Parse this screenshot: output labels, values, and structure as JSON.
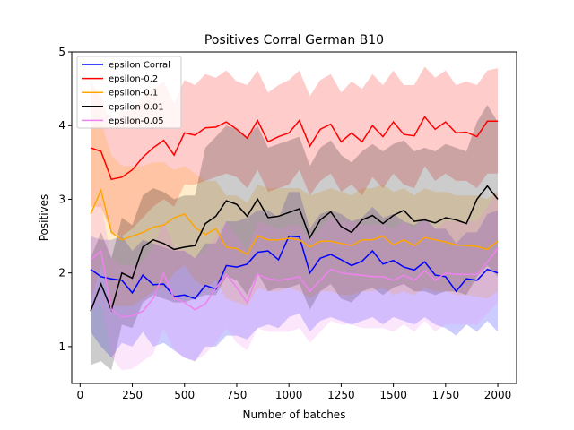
{
  "chart_data": {
    "type": "line",
    "title": "Positives Corral German B10",
    "xlabel": "Number of batches",
    "ylabel": "Positives",
    "xlim": [
      -40,
      2090
    ],
    "ylim": [
      0.5,
      5.0
    ],
    "xticks": [
      0,
      250,
      500,
      750,
      1000,
      1250,
      1500,
      1750,
      2000
    ],
    "yticks": [
      1,
      2,
      3,
      4,
      5
    ],
    "legend_position": "top-left",
    "x": [
      50,
      100,
      150,
      200,
      250,
      300,
      350,
      400,
      450,
      500,
      550,
      600,
      650,
      700,
      750,
      800,
      850,
      900,
      950,
      1000,
      1050,
      1100,
      1150,
      1200,
      1250,
      1300,
      1350,
      1400,
      1450,
      1500,
      1550,
      1600,
      1650,
      1700,
      1750,
      1800,
      1850,
      1900,
      1950,
      2000
    ],
    "series": [
      {
        "name": "epsilon Corral",
        "color": "#0000ff",
        "fill": "rgba(0,0,255,0.2)",
        "values": [
          2.05,
          1.95,
          1.92,
          1.9,
          1.73,
          1.97,
          1.84,
          1.85,
          1.68,
          1.7,
          1.65,
          1.83,
          1.78,
          2.1,
          2.08,
          2.12,
          2.28,
          2.3,
          2.18,
          2.5,
          2.49,
          2.0,
          2.2,
          2.25,
          2.18,
          2.1,
          2.16,
          2.3,
          2.12,
          2.17,
          2.08,
          2.04,
          2.15,
          1.97,
          1.95,
          1.75,
          1.92,
          1.9,
          2.05,
          2.0
        ],
        "upper": [
          2.5,
          2.45,
          2.45,
          2.5,
          2.3,
          2.45,
          2.4,
          2.35,
          2.3,
          2.3,
          2.2,
          2.4,
          2.4,
          2.7,
          2.7,
          2.75,
          2.85,
          2.85,
          2.75,
          3.1,
          3.1,
          2.6,
          2.8,
          2.85,
          2.8,
          2.7,
          2.75,
          2.9,
          2.75,
          2.8,
          2.7,
          2.65,
          2.75,
          2.6,
          2.6,
          2.4,
          2.55,
          2.55,
          2.8,
          2.85
        ],
        "lower": [
          1.2,
          1.0,
          0.85,
          1.05,
          1.0,
          1.2,
          1.0,
          1.05,
          0.95,
          0.85,
          0.8,
          1.0,
          1.0,
          1.15,
          1.15,
          1.1,
          1.25,
          1.3,
          1.25,
          1.4,
          1.45,
          1.2,
          1.35,
          1.4,
          1.35,
          1.3,
          1.35,
          1.4,
          1.3,
          1.4,
          1.35,
          1.3,
          1.4,
          1.3,
          1.25,
          1.15,
          1.3,
          1.2,
          1.35,
          1.2
        ]
      },
      {
        "name": "epsilon-0.2",
        "color": "#ff0000",
        "fill": "rgba(255,0,0,0.2)",
        "values": [
          3.7,
          3.65,
          3.27,
          3.3,
          3.4,
          3.57,
          3.7,
          3.8,
          3.6,
          3.9,
          3.87,
          3.97,
          3.98,
          4.05,
          3.95,
          3.83,
          4.07,
          3.78,
          3.85,
          3.9,
          4.07,
          3.72,
          3.95,
          4.02,
          3.78,
          3.9,
          3.78,
          4.0,
          3.85,
          4.05,
          3.88,
          3.86,
          4.12,
          3.95,
          4.05,
          3.9,
          3.91,
          3.85,
          4.06,
          4.06
        ],
        "upper": [
          4.6,
          4.4,
          4.0,
          4.2,
          4.2,
          4.4,
          4.5,
          4.6,
          4.3,
          4.62,
          4.55,
          4.7,
          4.65,
          4.75,
          4.6,
          4.55,
          4.75,
          4.45,
          4.55,
          4.62,
          4.75,
          4.4,
          4.62,
          4.7,
          4.45,
          4.6,
          4.5,
          4.7,
          4.55,
          4.75,
          4.55,
          4.55,
          4.8,
          4.65,
          4.75,
          4.55,
          4.6,
          4.55,
          4.75,
          4.78
        ],
        "lower": [
          2.9,
          2.9,
          2.55,
          2.5,
          2.6,
          2.75,
          2.9,
          3.0,
          2.9,
          3.2,
          3.2,
          3.25,
          3.3,
          3.35,
          3.3,
          3.15,
          3.4,
          3.1,
          3.15,
          3.2,
          3.4,
          3.05,
          3.25,
          3.35,
          3.1,
          3.2,
          3.05,
          3.3,
          3.15,
          3.35,
          3.2,
          3.15,
          3.45,
          3.25,
          3.35,
          3.25,
          3.25,
          3.15,
          3.35,
          3.35
        ]
      },
      {
        "name": "epsilon-0.1",
        "color": "#ffa500",
        "fill": "rgba(255,165,0,0.2)",
        "values": [
          2.8,
          3.12,
          2.55,
          2.45,
          2.5,
          2.55,
          2.62,
          2.65,
          2.75,
          2.8,
          2.62,
          2.52,
          2.6,
          2.35,
          2.33,
          2.25,
          2.5,
          2.45,
          2.45,
          2.47,
          2.45,
          2.35,
          2.43,
          2.43,
          2.4,
          2.37,
          2.45,
          2.45,
          2.5,
          2.38,
          2.45,
          2.37,
          2.48,
          2.45,
          2.42,
          2.38,
          2.37,
          2.36,
          2.32,
          2.43
        ],
        "upper": [
          4.0,
          4.05,
          3.6,
          3.45,
          3.45,
          3.45,
          3.5,
          3.5,
          3.4,
          3.45,
          3.35,
          3.25,
          3.25,
          3.05,
          3.05,
          2.95,
          3.2,
          3.15,
          3.15,
          3.15,
          3.15,
          3.05,
          3.1,
          3.15,
          3.1,
          3.05,
          3.15,
          3.15,
          3.2,
          3.1,
          3.15,
          3.05,
          3.15,
          3.1,
          3.1,
          3.05,
          3.05,
          3.05,
          3.0,
          3.1
        ],
        "lower": [
          1.6,
          2.1,
          1.55,
          1.55,
          1.55,
          1.65,
          1.75,
          1.8,
          2.0,
          2.1,
          1.9,
          1.8,
          1.9,
          1.65,
          1.6,
          1.55,
          1.8,
          1.75,
          1.75,
          1.8,
          1.75,
          1.65,
          1.75,
          1.75,
          1.7,
          1.7,
          1.75,
          1.75,
          1.8,
          1.7,
          1.75,
          1.7,
          1.8,
          1.75,
          1.75,
          1.7,
          1.7,
          1.68,
          1.65,
          1.75
        ]
      },
      {
        "name": "epsilon-0.01",
        "color": "#000000",
        "fill": "rgba(0,0,0,0.2)",
        "values": [
          1.48,
          1.85,
          1.5,
          2.0,
          1.93,
          2.35,
          2.45,
          2.4,
          2.32,
          2.35,
          2.37,
          2.67,
          2.77,
          2.98,
          2.93,
          2.77,
          3.0,
          2.75,
          2.77,
          2.82,
          2.87,
          2.48,
          2.72,
          2.83,
          2.63,
          2.55,
          2.72,
          2.78,
          2.67,
          2.78,
          2.85,
          2.7,
          2.72,
          2.68,
          2.75,
          2.72,
          2.67,
          3.0,
          3.18,
          3.0
        ],
        "upper": [
          2.2,
          2.55,
          2.2,
          2.75,
          2.65,
          3.05,
          3.15,
          3.1,
          3.0,
          3.05,
          3.05,
          3.7,
          3.85,
          4.0,
          3.95,
          3.85,
          4.0,
          3.7,
          3.75,
          3.8,
          3.85,
          3.45,
          3.7,
          3.8,
          3.6,
          3.5,
          3.65,
          3.75,
          3.65,
          3.75,
          3.8,
          3.65,
          3.7,
          3.65,
          3.75,
          3.7,
          3.65,
          4.05,
          4.28,
          4.05
        ],
        "lower": [
          0.75,
          0.8,
          0.68,
          1.3,
          1.25,
          1.6,
          1.7,
          1.65,
          1.6,
          1.6,
          1.65,
          1.7,
          1.7,
          1.95,
          1.9,
          1.7,
          2.0,
          1.75,
          1.8,
          1.8,
          1.85,
          1.5,
          1.75,
          1.85,
          1.65,
          1.6,
          1.75,
          1.8,
          1.7,
          1.8,
          1.85,
          1.75,
          1.75,
          1.7,
          1.75,
          1.75,
          1.7,
          1.95,
          2.1,
          1.95
        ]
      },
      {
        "name": "epsilon-0.05",
        "color": "#ee82ee",
        "fill": "rgba(238,130,238,0.2)",
        "values": [
          2.18,
          2.3,
          1.5,
          1.4,
          1.42,
          1.48,
          1.65,
          2.0,
          1.65,
          1.6,
          1.5,
          1.58,
          1.8,
          1.98,
          1.8,
          1.6,
          1.98,
          1.92,
          1.9,
          1.92,
          1.95,
          1.75,
          1.9,
          2.05,
          2.0,
          1.98,
          1.97,
          1.95,
          1.95,
          1.9,
          1.97,
          1.9,
          2.03,
          1.9,
          2.0,
          1.98,
          1.98,
          1.98,
          2.15,
          2.33
        ],
        "upper": [
          2.85,
          2.95,
          2.2,
          2.1,
          2.1,
          2.15,
          2.35,
          2.7,
          2.35,
          2.3,
          2.2,
          2.3,
          2.5,
          2.7,
          2.5,
          2.3,
          2.7,
          2.65,
          2.6,
          2.65,
          2.65,
          2.45,
          2.6,
          2.75,
          2.7,
          2.7,
          2.65,
          2.65,
          2.65,
          2.6,
          2.7,
          2.6,
          2.75,
          2.6,
          2.7,
          2.7,
          2.7,
          2.7,
          2.9,
          3.1
        ],
        "lower": [
          1.45,
          1.6,
          0.85,
          0.68,
          0.7,
          0.8,
          0.9,
          1.25,
          0.95,
          0.85,
          0.8,
          0.9,
          1.05,
          1.25,
          1.05,
          0.95,
          1.25,
          1.2,
          1.2,
          1.2,
          1.25,
          1.05,
          1.2,
          1.35,
          1.3,
          1.3,
          1.25,
          1.25,
          1.25,
          1.2,
          1.3,
          1.2,
          1.35,
          1.2,
          1.3,
          1.3,
          1.3,
          1.3,
          1.45,
          1.6
        ]
      }
    ]
  }
}
